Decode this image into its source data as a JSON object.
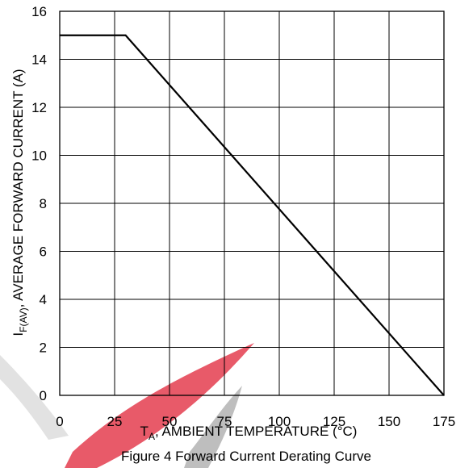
{
  "chart_data": {
    "type": "line",
    "title": "",
    "caption": "Figure 4 Forward Current Derating Curve",
    "xlabel": {
      "symbol": "T",
      "subscript": "A",
      "text": ", AMBIENT TEMPERATURE (°C)"
    },
    "ylabel": {
      "symbol": "I",
      "subscript": "F(AV)",
      "text": ", AVERAGE FORWARD CURRENT (A)"
    },
    "xlim": [
      0,
      175
    ],
    "ylim": [
      0,
      16
    ],
    "xticks": [
      0,
      25,
      50,
      75,
      100,
      125,
      150,
      175
    ],
    "yticks": [
      0,
      2,
      4,
      6,
      8,
      10,
      12,
      14,
      16
    ],
    "grid": true,
    "series": [
      {
        "x": [
          0,
          30,
          175
        ],
        "y": [
          15,
          15,
          0
        ]
      }
    ],
    "line_color": "#000000",
    "watermark_color": "#e0283c"
  }
}
